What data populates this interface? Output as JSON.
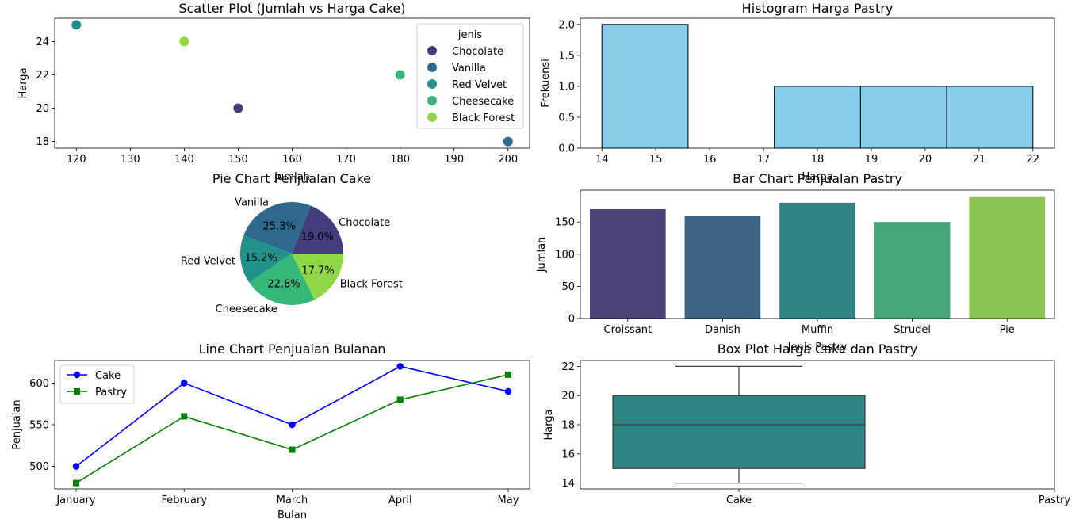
{
  "chart_data": [
    {
      "type": "scatter",
      "title": "Scatter Plot (Jumlah vs Harga Cake)",
      "xlabel": "Jumlah",
      "ylabel": "Harga",
      "xlim": [
        116,
        204
      ],
      "ylim": [
        17.6,
        25.4
      ],
      "xticks": [
        120,
        130,
        140,
        150,
        160,
        170,
        180,
        190,
        200
      ],
      "yticks": [
        18,
        20,
        22,
        24
      ],
      "legend_title": "jenis",
      "legend_position": "upper right",
      "points": [
        {
          "category": "Chocolate",
          "x": 150,
          "y": 20,
          "color": "#433d7e"
        },
        {
          "category": "Vanilla",
          "x": 200,
          "y": 18,
          "color": "#2e6a8e"
        },
        {
          "category": "Red Velvet",
          "x": 120,
          "y": 25,
          "color": "#21918c"
        },
        {
          "category": "Cheesecake",
          "x": 180,
          "y": 22,
          "color": "#35b779"
        },
        {
          "category": "Black Forest",
          "x": 140,
          "y": 24,
          "color": "#8fd744"
        }
      ]
    },
    {
      "type": "bar",
      "subtype": "histogram",
      "title": "Histogram Harga Pastry",
      "xlabel": "Harga",
      "ylabel": "Frekuensi",
      "xlim": [
        13.6,
        22.4
      ],
      "ylim": [
        0,
        2.1
      ],
      "xticks": [
        14,
        15,
        16,
        17,
        18,
        19,
        20,
        21,
        22
      ],
      "yticks": [
        "0.0",
        "0.5",
        "1.0",
        "1.5",
        "2.0"
      ],
      "bin_edges": [
        14,
        15.6,
        17.2,
        18.8,
        20.4,
        22
      ],
      "values": [
        2,
        0,
        1,
        1,
        1
      ],
      "color": "#87ceeb"
    },
    {
      "type": "pie",
      "title": "Pie Chart Penjualan Cake",
      "slices": [
        {
          "label": "Chocolate",
          "value": 19.0,
          "pct": "19.0%",
          "color": "#433d7e"
        },
        {
          "label": "Vanilla",
          "value": 25.3,
          "pct": "25.3%",
          "color": "#2e6a8e"
        },
        {
          "label": "Red Velvet",
          "value": 15.2,
          "pct": "15.2%",
          "color": "#21918c"
        },
        {
          "label": "Cheesecake",
          "value": 22.8,
          "pct": "22.8%",
          "color": "#35b779"
        },
        {
          "label": "Black Forest",
          "value": 17.7,
          "pct": "17.7%",
          "color": "#8fd744"
        }
      ]
    },
    {
      "type": "bar",
      "title": "Bar Chart Penjualan Pastry",
      "xlabel": "Jenis Pastry",
      "ylabel": "Jumlah",
      "ylim": [
        0,
        199.5
      ],
      "yticks": [
        0,
        50,
        100,
        150
      ],
      "categories": [
        "Croissant",
        "Danish",
        "Muffin",
        "Strudel",
        "Pie"
      ],
      "values": [
        170,
        160,
        180,
        150,
        190
      ],
      "colors": [
        "#4a4279",
        "#3d6483",
        "#2e8580",
        "#46a777",
        "#8dc555"
      ]
    },
    {
      "type": "line",
      "title": "Line Chart Penjualan Bulanan",
      "xlabel": "Bulan",
      "ylabel": "Penjualan",
      "ylim": [
        473,
        627
      ],
      "yticks": [
        500,
        550,
        600
      ],
      "categories": [
        "January",
        "February",
        "March",
        "April",
        "May"
      ],
      "legend_position": "upper left",
      "series": [
        {
          "name": "Cake",
          "values": [
            500,
            600,
            550,
            620,
            590
          ],
          "color": "#0000ff",
          "marker": "circle"
        },
        {
          "name": "Pastry",
          "values": [
            480,
            560,
            520,
            580,
            610
          ],
          "color": "#008000",
          "marker": "square"
        }
      ]
    },
    {
      "type": "box",
      "title": "Box Plot Harga Cake dan Pastry",
      "ylabel": "Harga",
      "ylim": [
        13.6,
        22.4
      ],
      "yticks": [
        14,
        16,
        18,
        20,
        22
      ],
      "categories": [
        "Cake",
        "Pastry"
      ],
      "box": {
        "category": "Cake",
        "min": 14,
        "q1": 15,
        "median": 18,
        "q3": 20,
        "max": 22,
        "color": "#2e8580"
      }
    }
  ]
}
